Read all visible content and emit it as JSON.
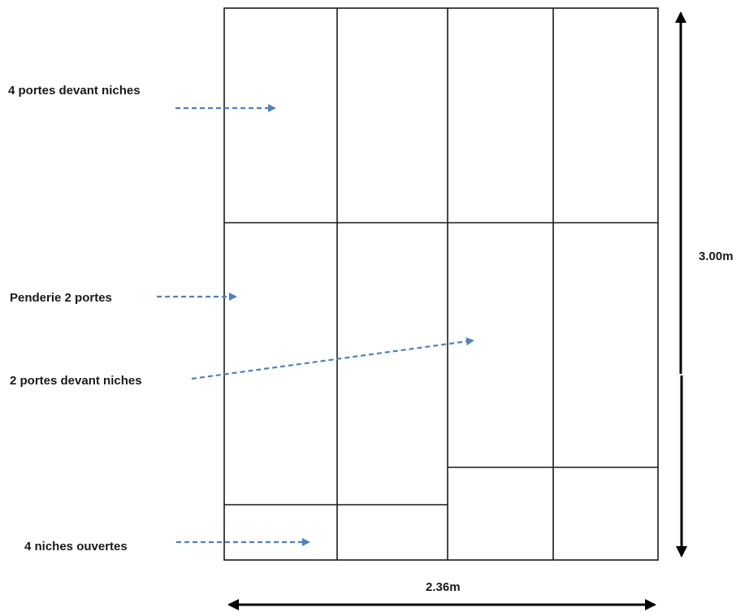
{
  "annotations": {
    "top_doors": "4 portes devant niches",
    "wardrobe": "Penderie 2 portes",
    "middle_doors": "2 portes devant niches",
    "open_niches": "4 niches ouvertes"
  },
  "dimensions": {
    "height": "3.00m",
    "width": "2.36m"
  },
  "colors": {
    "pointer": "#4f81bd",
    "line": "#1a1a1a"
  }
}
